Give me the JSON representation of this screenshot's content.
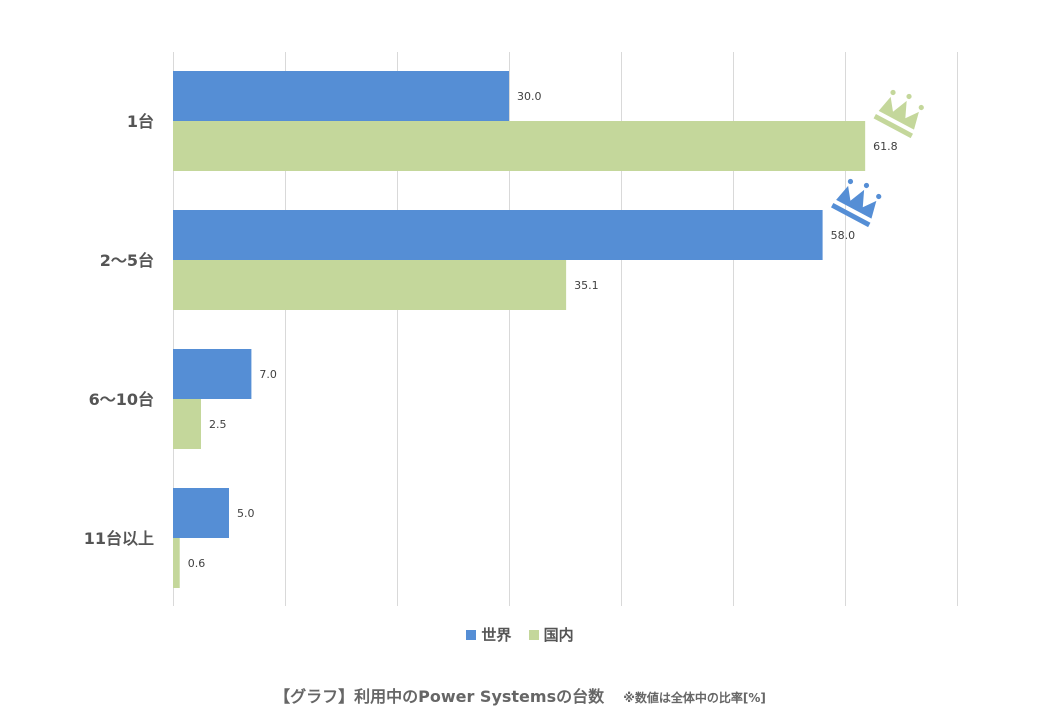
{
  "chart_data": {
    "type": "bar",
    "orientation": "horizontal",
    "categories": [
      "1台",
      "2～5台",
      "6～10台",
      "11台以上"
    ],
    "series": [
      {
        "name": "世界",
        "color": "#558ed5",
        "values": [
          30.0,
          58.0,
          7.0,
          5.0
        ]
      },
      {
        "name": "国内",
        "color": "#c4d79b",
        "values": [
          61.8,
          35.1,
          2.5,
          0.6
        ]
      }
    ],
    "xlim": [
      0,
      70
    ],
    "x_gridline_step": 10,
    "grid": true,
    "legend": "bottom",
    "annotations": [
      {
        "type": "crown-icon",
        "series": "国内",
        "category": "1台",
        "color": "#c4d79b"
      },
      {
        "type": "crown-icon",
        "series": "世界",
        "category": "2～5台",
        "color": "#558ed5"
      }
    ]
  },
  "caption": {
    "title": "【グラフ】利用中のPower Systemsの台数",
    "note": "※数値は全体中の比率[%]"
  }
}
